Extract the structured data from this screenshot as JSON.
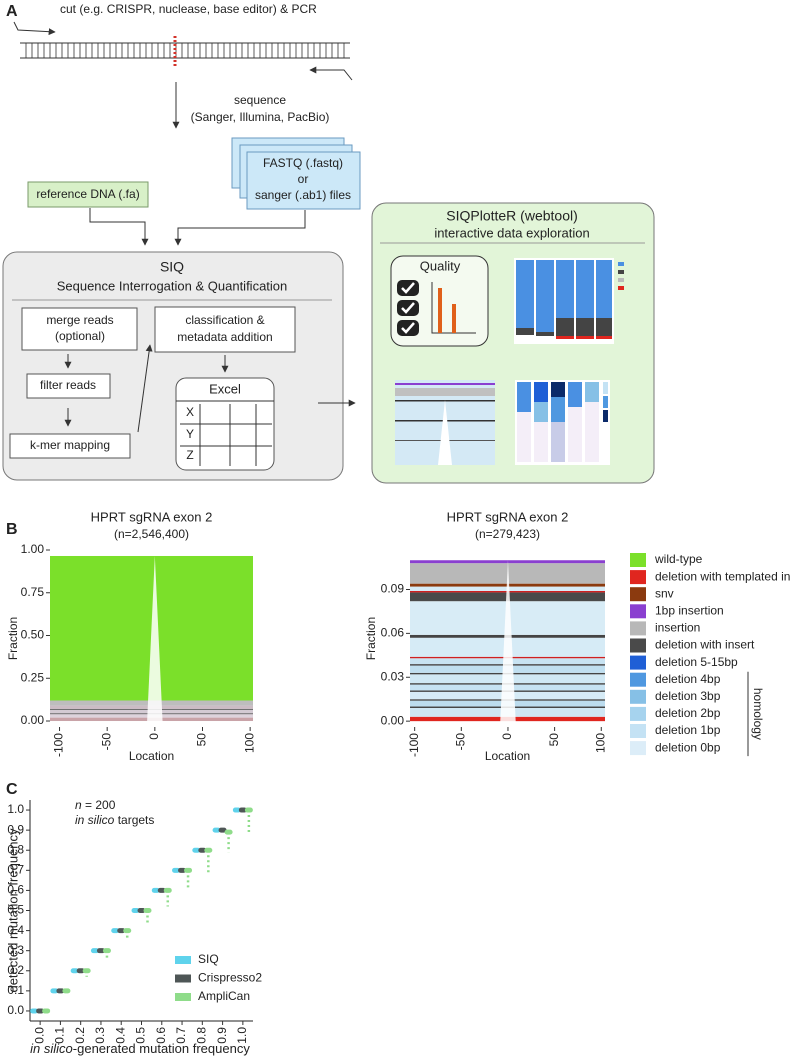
{
  "diagram": {
    "panel_label": "A",
    "cut": "cut (e.g. CRISPR, nuclease, base editor) & PCR",
    "sequence": [
      "sequence",
      "(Sanger, Illumina, PacBio)"
    ],
    "files": [
      "FASTQ (.fastq)",
      "or",
      "sanger (.ab1) files"
    ],
    "reference": "reference DNA (.fa)",
    "siq": {
      "title": "SIQ",
      "subtitle": "Sequence Interrogation & Quantification",
      "merge": [
        "merge reads",
        "(optional)"
      ],
      "filter": "filter reads",
      "mapping": "k-mer mapping",
      "classification": [
        "classification &",
        "metadata addition"
      ],
      "excel": "Excel",
      "rows": [
        "X",
        "Y",
        "Z"
      ]
    },
    "plotter": {
      "title": "SIQPlotteR (webtool)",
      "subtitle": "interactive data exploration",
      "quality": "Quality"
    }
  },
  "chart_data": [
    {
      "type": "tornado",
      "panel_label": "B",
      "title": "HPRT sgRNA exon 2",
      "subtitle": "(n=2,546,400)",
      "xlabel": "Location",
      "ylabel": "Fraction",
      "xlim": [
        -110,
        103
      ],
      "ylim": [
        -0.035,
        1.0
      ],
      "xticks": [
        -100,
        -50,
        0,
        50,
        100
      ],
      "yticks": [
        {
          "value": 0,
          "label": "0.00"
        },
        {
          "value": 0.25,
          "label": "0.25"
        },
        {
          "value": 0.5,
          "label": "0.50"
        },
        {
          "value": 0.75,
          "label": "0.75"
        },
        {
          "value": 1,
          "label": "1.00"
        }
      ],
      "layers": [
        {
          "color": "#c9a3a8",
          "value": 0.02
        },
        {
          "color": "#ddd3dc",
          "value": 0.02
        },
        {
          "color": "#444444",
          "value": 0.005
        },
        {
          "color": "#d3cad3",
          "value": 0.02
        },
        {
          "color": "#555555",
          "value": 0.005
        },
        {
          "color": "#cbbcc4",
          "value": 0.02
        },
        {
          "color": "#bdbdbd",
          "value": 0.03
        },
        {
          "color": "#7be02a",
          "value": 0.845
        }
      ]
    },
    {
      "type": "tornado",
      "title": "HPRT sgRNA exon 2",
      "subtitle": "(n=279,423)",
      "xlabel": "Location",
      "ylabel": "Fraction",
      "xlim": [
        -105,
        104
      ],
      "ylim": [
        -0.004,
        0.117
      ],
      "xticks": [
        -100,
        -50,
        0,
        50,
        100
      ],
      "yticks": [
        {
          "value": 0,
          "label": "0.00"
        },
        0.03,
        0.06,
        0.09
      ],
      "layers": [
        {
          "color": "#e0261f",
          "value": 0.003
        },
        {
          "color": "#cfe6f3",
          "value": 0.006
        },
        {
          "color": "#444444",
          "value": 0.001
        },
        {
          "color": "#bcdcee",
          "value": 0.004
        },
        {
          "color": "#444444",
          "value": 0.001
        },
        {
          "color": "#d6ebf6",
          "value": 0.005
        },
        {
          "color": "#444444",
          "value": 0.001
        },
        {
          "color": "#c6e2f2",
          "value": 0.004
        },
        {
          "color": "#444444",
          "value": 0.001
        },
        {
          "color": "#d0e8f4",
          "value": 0.006
        },
        {
          "color": "#444444",
          "value": 0.001
        },
        {
          "color": "#c0dff0",
          "value": 0.005
        },
        {
          "color": "#444444",
          "value": 0.001
        },
        {
          "color": "#c8e3f2",
          "value": 0.004
        },
        {
          "color": "#d02020",
          "value": 0.001
        },
        {
          "color": "#d6ebf6",
          "value": 0.013
        },
        {
          "color": "#444444",
          "value": 0.002
        },
        {
          "color": "#d8ecf6",
          "value": 0.023
        },
        {
          "color": "#4a4a4a",
          "value": 0.006
        },
        {
          "color": "#d02020",
          "value": 0.001
        },
        {
          "color": "#d6ebf6",
          "value": 0.003
        },
        {
          "color": "#8b3a0f",
          "value": 0.002
        },
        {
          "color": "#b8b8b8",
          "value": 0.014
        },
        {
          "color": "#8a3fd0",
          "value": 0.002
        }
      ],
      "legend": "right",
      "series": [
        {
          "name": "wild-type",
          "color": "#7be02a"
        },
        {
          "name": "deletion with templated insert",
          "color": "#e0261f"
        },
        {
          "name": "snv",
          "color": "#8b3a0f"
        },
        {
          "name": "1bp insertion",
          "color": "#8a3fd0"
        },
        {
          "name": "insertion",
          "color": "#b8b8b8"
        },
        {
          "name": "deletion with insert",
          "color": "#4a4a4a"
        },
        {
          "name": "deletion 5-15bp",
          "color": "#1f5fd6"
        },
        {
          "name": "deletion 4bp",
          "color": "#4f98e0"
        },
        {
          "name": "deletion 3bp",
          "color": "#86c0e6"
        },
        {
          "name": "deletion 2bp",
          "color": "#a6d3ee"
        },
        {
          "name": "deletion 1bp",
          "color": "#c4e2f4"
        },
        {
          "name": "deletion 0bp",
          "color": "#dcedf8"
        }
      ],
      "legend_group": "homology"
    },
    {
      "type": "scatter",
      "panel_label": "C",
      "annotation": [
        [
          "n",
          " = 200"
        ],
        [
          "in silico",
          " targets"
        ]
      ],
      "xlabel": [
        "in silico",
        "-generated mutation frequency"
      ],
      "ylabel": "detected mutation frequency",
      "xlim": [
        -0.05,
        1.05
      ],
      "ylim": [
        -0.05,
        1.05
      ],
      "xticks": [
        {
          "value": 0,
          "label": "0.0"
        },
        0.1,
        0.2,
        0.3,
        0.4,
        0.5,
        0.6,
        0.7,
        0.8,
        0.9,
        {
          "value": 1,
          "label": "1.0"
        }
      ],
      "yticks": [
        {
          "value": 0,
          "label": "0.0"
        },
        0.1,
        0.2,
        0.3,
        0.4,
        0.5,
        0.6,
        0.7,
        0.8,
        0.9,
        {
          "value": 1,
          "label": "1.0"
        }
      ],
      "x": [
        0,
        0.1,
        0.2,
        0.3,
        0.4,
        0.5,
        0.6,
        0.7,
        0.8,
        0.9,
        1
      ],
      "series": [
        {
          "name": "SIQ",
          "color": "#5fd3ec",
          "values": [
            0,
            0.1,
            0.2,
            0.3,
            0.4,
            0.5,
            0.6,
            0.7,
            0.8,
            0.9,
            1
          ]
        },
        {
          "name": "Crispresso2",
          "color": "#4e5656",
          "values": [
            0,
            0.1,
            0.2,
            0.3,
            0.4,
            0.5,
            0.6,
            0.7,
            0.8,
            0.9,
            1
          ]
        },
        {
          "name": "AmpliCan",
          "color": "#8fdc8a",
          "values": [
            0,
            0.1,
            0.2,
            0.3,
            0.4,
            0.5,
            0.6,
            0.7,
            0.8,
            0.89,
            1
          ],
          "low": [
            0,
            0.08,
            0.17,
            0.26,
            0.35,
            0.44,
            0.52,
            0.61,
            0.69,
            0.79,
            0.88
          ]
        }
      ],
      "legend": "lower right"
    }
  ]
}
